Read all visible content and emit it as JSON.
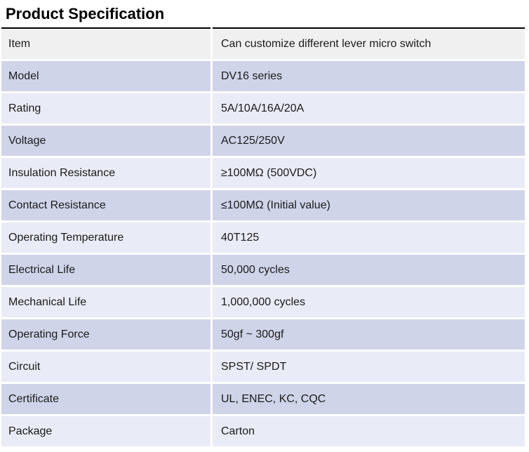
{
  "page": {
    "title": "Product Specification"
  },
  "colors": {
    "header_row_bg": "#f0f0f0",
    "dark_row_bg": "#cfd4e9",
    "light_row_bg": "#e9ebf6",
    "rule": "#000000",
    "text": "#1b1b1b"
  },
  "table": {
    "rows": [
      {
        "label": "Item",
        "value": "Can customize different lever micro switch",
        "tone": "gray"
      },
      {
        "label": "Model",
        "value": "DV16 series",
        "tone": "dark"
      },
      {
        "label": "Rating",
        "value": "5A/10A/16A/20A",
        "tone": "light"
      },
      {
        "label": "Voltage",
        "value": "AC125/250V",
        "tone": "dark"
      },
      {
        "label": "Insulation Resistance",
        "value": "≥100MΩ (500VDC)",
        "tone": "light"
      },
      {
        "label": "Contact Resistance",
        "value": "≤100MΩ (Initial value)",
        "tone": "dark"
      },
      {
        "label": "Operating Temperature",
        "value": "40T125",
        "tone": "light"
      },
      {
        "label": "Electrical Life",
        "value": "50,000 cycles",
        "tone": "dark"
      },
      {
        "label": "Mechanical Life",
        "value": "1,000,000 cycles",
        "tone": "light"
      },
      {
        "label": "Operating Force",
        "value": "50gf ~ 300gf",
        "tone": "dark"
      },
      {
        "label": "Circuit",
        "value": "SPST/ SPDT",
        "tone": "light"
      },
      {
        "label": "Certificate",
        "value": "UL, ENEC, KC, CQC",
        "tone": "dark"
      },
      {
        "label": "Package",
        "value": "Carton",
        "tone": "light"
      }
    ]
  }
}
